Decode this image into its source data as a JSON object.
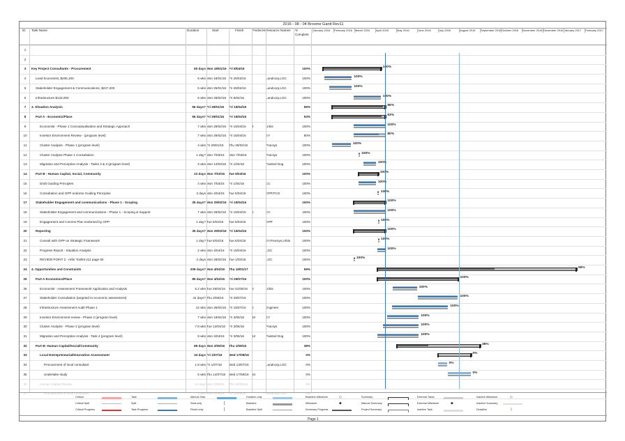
{
  "title": "2016 - 08 - 04 Broome Gantt Rev11",
  "columns": {
    "id": "ID",
    "task_name": "Task Name",
    "duration": "Duration",
    "start": "Start",
    "finish": "Finish",
    "predecessors": "Predecessors",
    "resource_names": "Resource Names",
    "pct_line1": "%",
    "pct_line2": "Complete"
  },
  "months": [
    "January 2016",
    "February 2016",
    "March 2016",
    "April 2016",
    "May 2016",
    "June 2016",
    "July 2016",
    "August 2016",
    "September 2016",
    "October 2016",
    "November 2016",
    "December 2016",
    "January 2017",
    "February 2017"
  ],
  "tasks": [
    {
      "id": "1",
      "name": "",
      "duration": "",
      "start": "",
      "finish": "",
      "pred": "",
      "res": "",
      "pct": "",
      "bar": null
    },
    {
      "id": "2",
      "name": "",
      "duration": "",
      "start": "",
      "finish": "",
      "pred": "",
      "res": "",
      "pct": "",
      "bar": null
    },
    {
      "id": "3",
      "name": "Key Project Consultants - Procurement",
      "duration": "60 days",
      "start": "Mon 18/01/16",
      "finish": "Fri 8/04/16",
      "pred": "",
      "res": "",
      "pct": "100%",
      "summary": true,
      "indent": 0,
      "bar": {
        "start": 0.5,
        "end": 3.26,
        "kind": "summary",
        "progress": 1,
        "label": "100%"
      }
    },
    {
      "id": "4",
      "name": "Lead Economist, $205,100",
      "duration": "6 wks",
      "start": "Mon 18/01/16",
      "finish": "Fri 26/02/16",
      "pred": "",
      "res": "Landcorp,LGC",
      "pct": "100%",
      "indent": 1,
      "bar": {
        "start": 0.55,
        "end": 1.88,
        "kind": "task",
        "progress": 1,
        "label": "100%"
      }
    },
    {
      "id": "5",
      "name": "Stakeholder Engagement & Communications, $227,200",
      "duration": "5 wks",
      "start": "Mon 25/01/16",
      "finish": "Fri 26/02/16",
      "pred": "",
      "res": "Landcorp,LGC",
      "pct": "100%",
      "indent": 1,
      "bar": {
        "start": 0.8,
        "end": 1.88,
        "kind": "task",
        "progress": 1,
        "label": "100%"
      }
    },
    {
      "id": "6",
      "name": "Infrastructure $133,000",
      "duration": "6 wks",
      "start": "Mon 29/02/16",
      "finish": "Fri 8/04/16",
      "pred": "",
      "res": "Landcorp,LGC",
      "pct": "100%",
      "indent": 1,
      "bar": {
        "start": 1.95,
        "end": 3.26,
        "kind": "task",
        "progress": 1,
        "label": "100%"
      }
    },
    {
      "id": "7",
      "name": "3. Situation Analysis",
      "duration": "56 days?",
      "start": "Fri 29/01/16",
      "finish": "Fri 15/04/16",
      "pred": "",
      "res": "",
      "pct": "96%",
      "summary": true,
      "indent": 0,
      "bar": {
        "start": 0.93,
        "end": 3.48,
        "kind": "summary",
        "progress": 0.96,
        "label": "96%"
      }
    },
    {
      "id": "8",
      "name": "Part A - Economic/Place",
      "duration": "56 days?",
      "start": "Fri 29/01/16",
      "finish": "Fri 15/04/16",
      "pred": "",
      "res": "",
      "pct": "93%",
      "summary": true,
      "indent": 1,
      "bar": {
        "start": 0.93,
        "end": 3.48,
        "kind": "summary",
        "progress": 0.93,
        "label": "93%"
      }
    },
    {
      "id": "9",
      "name": "Economist - Phase 1 Conceptualisation and Strategic Approach",
      "duration": "7 wks",
      "start": "Mon 29/02/16",
      "finish": "Fri 15/04/16",
      "pred": "4",
      "res": "Urbis",
      "pct": "100%",
      "indent": 2,
      "bar": {
        "start": 1.95,
        "end": 3.48,
        "kind": "task",
        "progress": 1,
        "label": "100%"
      }
    },
    {
      "id": "10",
      "name": "Investor Environment Review - (program level)",
      "duration": "7 wks",
      "start": "Mon 29/02/16",
      "finish": "Fri 15/04/16",
      "pred": "",
      "res": "EY",
      "pct": "80%",
      "indent": 2,
      "bar": {
        "start": 1.95,
        "end": 3.48,
        "kind": "task",
        "progress": 0.8,
        "label": "80%"
      }
    },
    {
      "id": "11",
      "name": "Cluster Analysis - Phase 1 (program level)",
      "duration": "4 wks",
      "start": "Fri 29/01/16",
      "finish": "Thu 25/02/16",
      "pred": "",
      "res": "Pracsys",
      "pct": "100%",
      "indent": 2,
      "bar": {
        "start": 0.93,
        "end": 1.83,
        "kind": "task",
        "progress": 1,
        "label": "100%"
      }
    },
    {
      "id": "12",
      "name": "Cluster Analysis Phase 1 Consultation",
      "duration": "1 day?",
      "start": "Mon 7/03/16",
      "finish": "Mon 7/03/16",
      "pred": "",
      "res": "Pracsys",
      "pct": "100%",
      "indent": 2,
      "bar": {
        "start": 2.2,
        "end": 2.24,
        "kind": "task",
        "progress": 1,
        "label": "100%"
      }
    },
    {
      "id": "13",
      "name": "Migration and Perception Analysis - Tasks 2 & 3 (program level)",
      "duration": "3 wks",
      "start": "Mon 14/03/16",
      "finish": "Fri 1/04/16",
      "pred": "",
      "res": "Painted Dog",
      "pct": "100%",
      "indent": 2,
      "bar": {
        "start": 2.43,
        "end": 3.03,
        "kind": "task",
        "progress": 1,
        "label": "100%"
      }
    },
    {
      "id": "14",
      "name": "Part B - Human Capital, Social, Community",
      "duration": "22 days",
      "start": "Mon 7/03/16",
      "finish": "Tue 5/04/16",
      "pred": "",
      "res": "",
      "pct": "100%",
      "summary": true,
      "indent": 1,
      "bar": {
        "start": 2.2,
        "end": 3.13,
        "kind": "summary",
        "progress": 1,
        "label": "100%"
      }
    },
    {
      "id": "15",
      "name": "Draft Guiding Principles",
      "duration": "4 wks",
      "start": "Mon 7/03/16",
      "finish": "Fri 1/04/16",
      "pred": "",
      "res": "CC",
      "pct": "100%",
      "indent": 2,
      "bar": {
        "start": 2.2,
        "end": 3.03,
        "kind": "task",
        "progress": 1,
        "label": "100%"
      }
    },
    {
      "id": "16",
      "name": "Consultation and GPP endorse Guiding Principles",
      "duration": "2 days",
      "start": "Mon 4/04/16",
      "finish": "Tue 5/04/16",
      "pred": "",
      "res": "GPP,PCG",
      "pct": "100%",
      "indent": 2,
      "bar": {
        "start": 3.1,
        "end": 3.16,
        "kind": "task",
        "progress": 1,
        "label": "100%"
      }
    },
    {
      "id": "17",
      "name": "Stakeholder Engagement and communications - Phase 1 - Scoping",
      "duration": "35 days?",
      "start": "Mon 29/02/16",
      "finish": "Fri 15/04/16",
      "pred": "",
      "res": "",
      "pct": "100%",
      "summary": true,
      "indent": 1,
      "bar": {
        "start": 1.95,
        "end": 3.48,
        "kind": "summary",
        "progress": 1,
        "label": "100%"
      }
    },
    {
      "id": "18",
      "name": "Stakeholder Engagement and communications - Phase 1 - Scoping & Support",
      "duration": "7 wks",
      "start": "Mon 29/02/16",
      "finish": "Fri 15/04/16",
      "pred": "5",
      "res": "CC",
      "pct": "100%",
      "indent": 2,
      "bar": {
        "start": 1.95,
        "end": 3.48,
        "kind": "task",
        "progress": 1,
        "label": "100%"
      }
    },
    {
      "id": "19",
      "name": "Engagement and Comms Plan endorsed by GPP",
      "duration": "1 day?",
      "start": "Tue 5/04/16",
      "finish": "Tue 5/04/16",
      "pred": "",
      "res": "GPP",
      "pct": "100%",
      "indent": 2,
      "bar": {
        "start": 3.13,
        "end": 3.17,
        "kind": "task",
        "progress": 1,
        "label": "100%"
      }
    },
    {
      "id": "20",
      "name": "Reporting",
      "duration": "35 days?",
      "start": "Mon 29/02/16",
      "finish": "Fri 15/04/16",
      "pred": "",
      "res": "",
      "pct": "100%",
      "summary": true,
      "indent": 1,
      "bar": {
        "start": 1.95,
        "end": 3.48,
        "kind": "summary",
        "progress": 1,
        "label": "100%"
      }
    },
    {
      "id": "21",
      "name": "Consult with GPP on Strategic Framework",
      "duration": "1 day?",
      "start": "Tue 5/04/16",
      "finish": "Tue 5/04/16",
      "pred": "",
      "res": "EY,Pracsys,Urbis",
      "pct": "100%",
      "indent": 2,
      "bar": {
        "start": 3.13,
        "end": 3.17,
        "kind": "task",
        "progress": 1,
        "label": "100%"
      }
    },
    {
      "id": "22",
      "name": "Progress Report - Situation Analysis",
      "duration": "2 wks",
      "start": "Mon 4/04/16",
      "finish": "Fri 15/04/16",
      "pred": "",
      "res": "LGC",
      "pct": "100%",
      "indent": 2,
      "bar": {
        "start": 3.1,
        "end": 3.48,
        "kind": "task",
        "progress": 1,
        "label": "100%"
      }
    },
    {
      "id": "23",
      "name": "REVIEW POINT 2 - refer Toolkit v12 page 60",
      "duration": "2 days",
      "start": "Mon 29/02/16",
      "finish": "Tue 1/03/16",
      "pred": "",
      "res": "LGC",
      "pct": "100%",
      "indent": 2,
      "bar": {
        "start": 1.95,
        "end": 2.0,
        "kind": "task",
        "progress": 1,
        "label": "100%"
      }
    },
    {
      "id": "24",
      "name": "4. Opportunities and Constraints",
      "duration": "209 days?",
      "start": "Mon 4/04/16",
      "finish": "Thu 19/01/17",
      "pred": "",
      "res": "",
      "pct": "59%",
      "summary": true,
      "indent": 0,
      "bar": {
        "start": 3.1,
        "end": 12.6,
        "kind": "summary",
        "progress": 0.59,
        "label": "59%"
      }
    },
    {
      "id": "25",
      "name": "Part A Economics/Place",
      "duration": "85 days?",
      "start": "Mon 4/04/16",
      "finish": "Fri 29/07/16",
      "pred": "",
      "res": "",
      "pct": "100%",
      "summary": true,
      "indent": 1,
      "bar": {
        "start": 3.1,
        "end": 6.95,
        "kind": "summary",
        "progress": 1,
        "label": "100%"
      }
    },
    {
      "id": "26",
      "name": "Economist - Assessment Framework Application and Analysis",
      "duration": "5.2 wks",
      "start": "Tue 26/04/16",
      "finish": "Tue 31/05/16",
      "pred": "9",
      "res": "Urbis",
      "pct": "100%",
      "indent": 2,
      "bar": {
        "start": 3.83,
        "end": 4.99,
        "kind": "task",
        "progress": 1,
        "label": "100%"
      }
    },
    {
      "id": "27",
      "name": "Stakeholder Consultation (targeted to economic assessment)",
      "duration": "42 days?",
      "start": "Thu 2/06/16",
      "finish": "Fri 29/07/16",
      "pred": "",
      "res": "",
      "pct": "100%",
      "indent": 2,
      "bar": {
        "start": 5.04,
        "end": 6.95,
        "kind": "task",
        "progress": 1,
        "label": "100%"
      }
    },
    {
      "id": "28",
      "name": "Infrastructure Assessment Audit Phase 1",
      "duration": "12 wks",
      "start": "Mon 25/04/16",
      "finish": "Fri 15/07/16",
      "pred": "6",
      "res": "Engineer",
      "pct": "100%",
      "indent": 2,
      "bar": {
        "start": 3.8,
        "end": 6.48,
        "kind": "task",
        "progress": 1,
        "label": "100%"
      }
    },
    {
      "id": "29",
      "name": "Investor Environment review - Phase 2 (program level)",
      "duration": "7 wks",
      "start": "Mon 18/04/16",
      "finish": "Fri 3/06/16",
      "pred": "10",
      "res": "EY",
      "pct": "100%",
      "indent": 2,
      "bar": {
        "start": 3.57,
        "end": 5.08,
        "kind": "task",
        "progress": 1,
        "label": "100%"
      }
    },
    {
      "id": "30",
      "name": "Cluster Analysis - Phase 2 (program level)",
      "duration": "7.8 wks",
      "start": "Tue 12/04/16",
      "finish": "Fri 3/06/16",
      "pred": "",
      "res": "Pracsys",
      "pct": "100%",
      "indent": 2,
      "bar": {
        "start": 3.37,
        "end": 5.08,
        "kind": "task",
        "progress": 1,
        "label": "100%"
      }
    },
    {
      "id": "31",
      "name": "Migration and Perception Analysis - Task 4 (program level)",
      "duration": "9 wks",
      "start": "Mon 4/04/16",
      "finish": "Fri 3/06/16",
      "pred": "13",
      "res": "Painted Dog",
      "pct": "100%",
      "indent": 2,
      "bar": {
        "start": 3.1,
        "end": 5.08,
        "kind": "task",
        "progress": 1,
        "label": "100%"
      }
    },
    {
      "id": "32",
      "name": "Part B: Human Capital/Social/Community",
      "duration": "89 days",
      "start": "Mon 2/05/16",
      "finish": "Thu 1/09/16",
      "pred": "",
      "res": "",
      "pct": "38%",
      "summary": true,
      "indent": 1,
      "bar": {
        "start": 4.03,
        "end": 8.0,
        "kind": "summary",
        "progress": 0.38,
        "label": "38%"
      }
    },
    {
      "id": "33",
      "name": "Local Entrepreneurial/Innovation Assessment",
      "duration": "34 days",
      "start": "Fri 1/07/16",
      "finish": "Wed 17/08/16",
      "pred": "",
      "res": "",
      "pct": "0%",
      "summary": true,
      "indent": 2,
      "bar": {
        "start": 6.0,
        "end": 7.55,
        "kind": "summary",
        "progress": 0,
        "label": "0%"
      }
    },
    {
      "id": "34",
      "name": "Procurement of local consultant",
      "duration": "1.8 wks",
      "start": "Fri 1/07/16",
      "finish": "Wed 13/07/16",
      "pred": "",
      "res": "Landcorp,LGC",
      "pct": "0%",
      "indent": 3,
      "bar": {
        "start": 6.0,
        "end": 6.42,
        "kind": "task",
        "progress": 0,
        "label": "0%"
      }
    },
    {
      "id": "35",
      "name": "Undertake study",
      "duration": "5 wks",
      "start": "Thu 14/07/16",
      "finish": "Wed 17/08/16",
      "pred": "34",
      "res": "",
      "pct": "0%",
      "indent": 3,
      "bar": {
        "start": 6.45,
        "end": 7.55,
        "kind": "task",
        "progress": 0,
        "label": "0%"
      }
    },
    {
      "id": "36",
      "name": "Human Capital Review",
      "duration": "14 days",
      "start": "Mon 2/05/16",
      "finish": "Thu 19/05/16",
      "pred": "",
      "res": "",
      "pct": "0%",
      "faded": true,
      "indent": 2,
      "bar": null
    },
    {
      "id": "37",
      "name": "Procurement of local consultant",
      "duration": "3 wks",
      "start": "Mon 2/05/16",
      "finish": "Fri 13/05/16",
      "pred": "",
      "res": "Landcorp,LGC",
      "pct": "0%",
      "faded": true,
      "indent": 3,
      "bar": null
    }
  ],
  "legend": [
    {
      "label": "Critical",
      "sym": "crit"
    },
    {
      "label": "Critical Split",
      "sym": "critsplit"
    },
    {
      "label": "Critical Progress",
      "sym": "critprog"
    },
    {
      "label": "Task",
      "sym": "task"
    },
    {
      "label": "Split",
      "sym": "split"
    },
    {
      "label": "Task Progress",
      "sym": "taskprog"
    },
    {
      "label": "Manual Task",
      "sym": "manual"
    },
    {
      "label": "Start-only",
      "sym": "startonly"
    },
    {
      "label": "Finish-only",
      "sym": "finishonly"
    },
    {
      "label": "Duration-only",
      "sym": "duronly"
    },
    {
      "label": "Baseline",
      "sym": "baseline"
    },
    {
      "label": "Baseline Split",
      "sym": "baselinesplit"
    },
    {
      "label": "Baseline Milestone",
      "sym": "blmilestone"
    },
    {
      "label": "Milestone",
      "sym": "milestone"
    },
    {
      "label": "Summary Progress",
      "sym": "sumprog"
    },
    {
      "label": "Summary",
      "sym": "summary"
    },
    {
      "label": "Manual Summary",
      "sym": "mansummary"
    },
    {
      "label": "Project Summary",
      "sym": "projsummary"
    },
    {
      "label": "External Tasks",
      "sym": "exttasks"
    },
    {
      "label": "External Milestone",
      "sym": "extmilestone"
    },
    {
      "label": "Inactive Task",
      "sym": "inactivetask"
    },
    {
      "label": "Inactive Milestone",
      "sym": "inactivemilestone"
    },
    {
      "label": "Inactive Summary",
      "sym": "inactivesummary"
    },
    {
      "label": "Deadline",
      "sym": "deadline"
    }
  ],
  "colors": {
    "task": "#8db3d4",
    "progress": "#3f78b0",
    "summary": "#555555",
    "critical": "#f2a7a7",
    "critical_progress": "#d33",
    "baseline": "#9ec6e2",
    "deadline": "#2e9e2e"
  },
  "footer": "Page 1"
}
